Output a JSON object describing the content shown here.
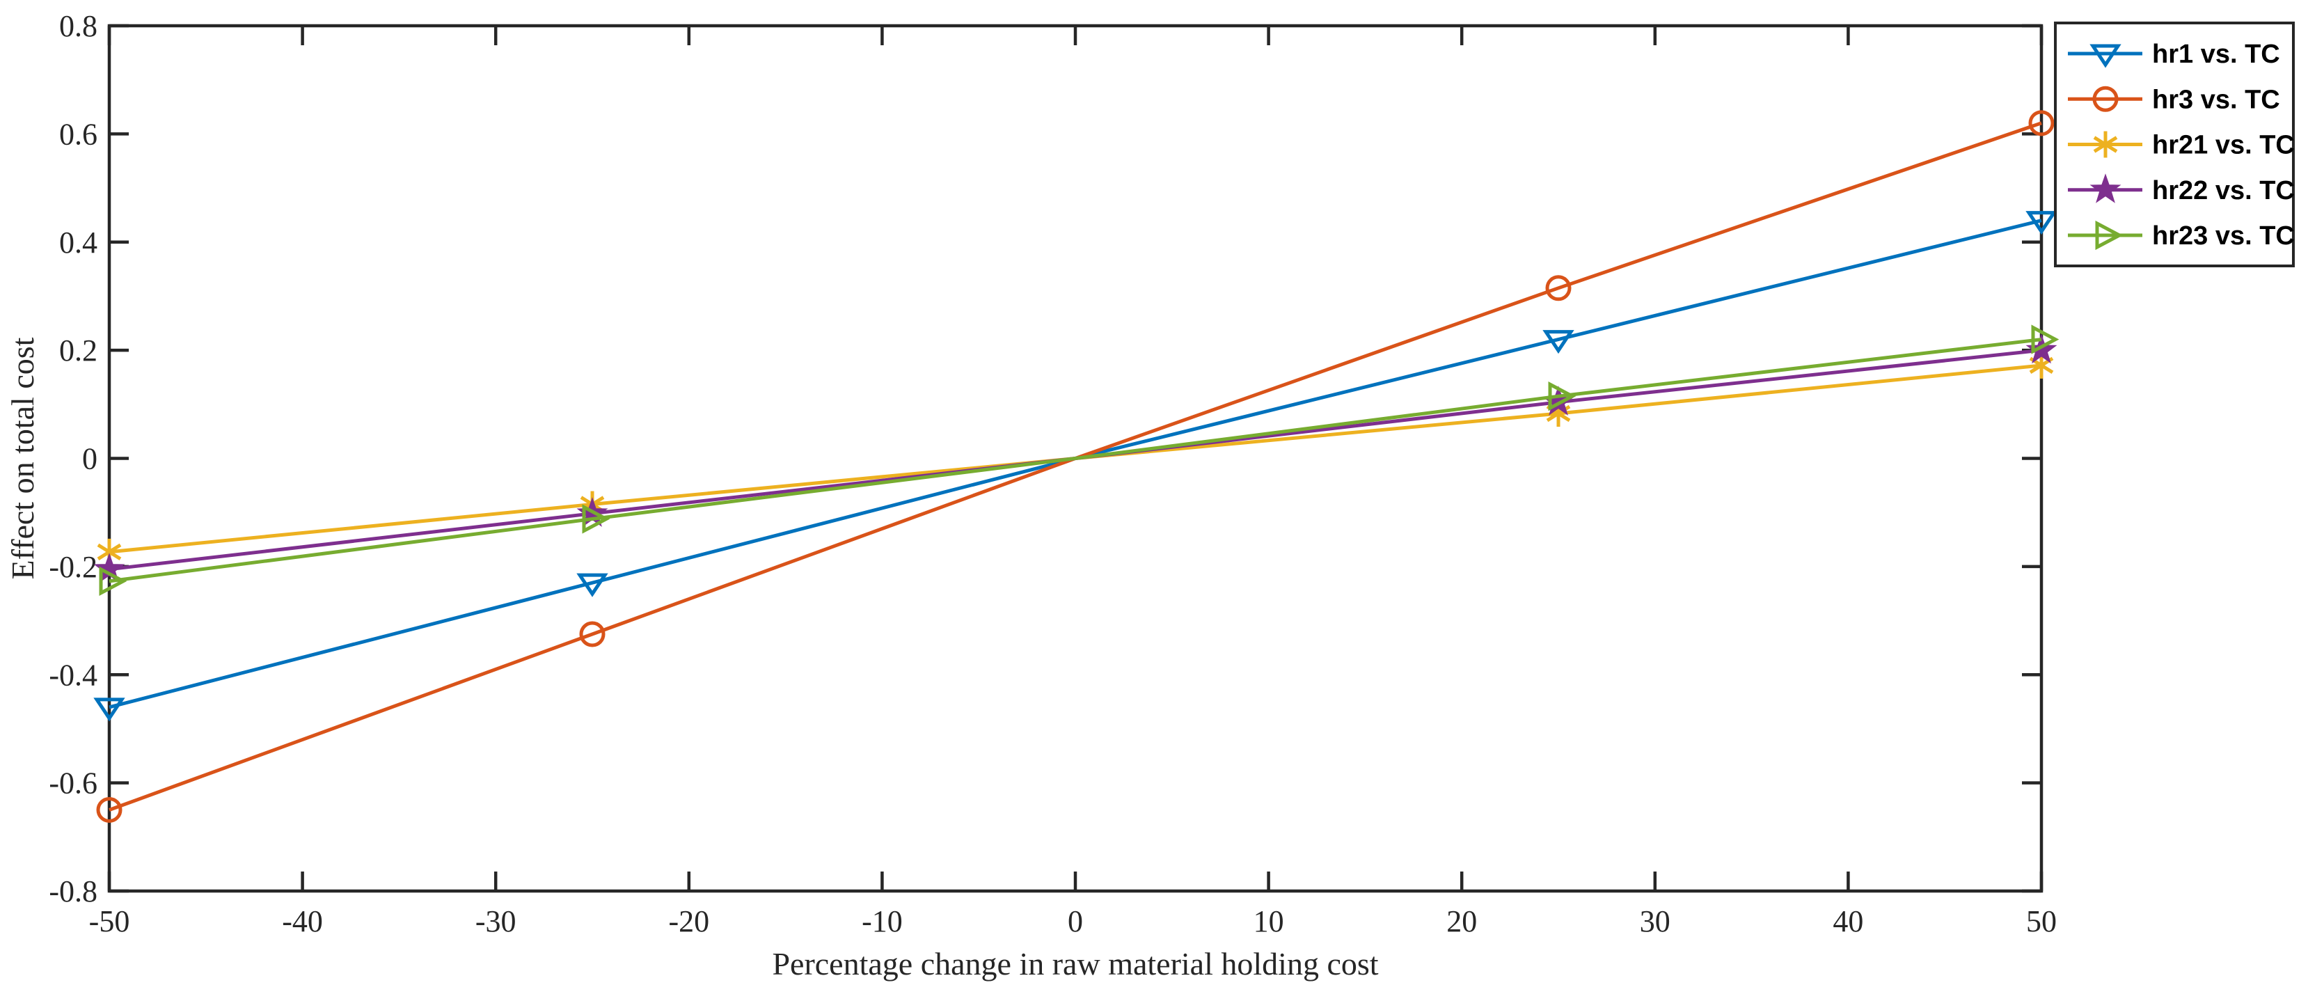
{
  "figure": {
    "background": "#ffffff",
    "axis_color": "#262626",
    "legend_border_color": "#262626"
  },
  "chart_data": {
    "type": "line",
    "title": "",
    "xlabel": "Percentage change in raw material holding cost",
    "ylabel": "Effect on total cost",
    "xlim": [
      -50,
      50
    ],
    "ylim": [
      -0.8,
      0.8
    ],
    "xticks": [
      -50,
      -40,
      -30,
      -20,
      -10,
      0,
      10,
      20,
      30,
      40,
      50
    ],
    "yticks": [
      0.8,
      0.6,
      0.4,
      0.2,
      0,
      -0.2,
      -0.4,
      -0.6,
      -0.8
    ],
    "grid": false,
    "box": true,
    "tick_direction": "in",
    "legend_position": "top-right-outside",
    "x": [
      -50,
      -25,
      0,
      25,
      50
    ],
    "series": [
      {
        "name": "hr1 vs. TC",
        "color": "#0072BD",
        "marker": "triangle-down",
        "values": [
          -0.46,
          -0.23,
          0,
          0.22,
          0.44
        ]
      },
      {
        "name": "hr3 vs. TC",
        "color": "#D95319",
        "marker": "circle",
        "values": [
          -0.65,
          -0.325,
          0,
          0.315,
          0.62
        ]
      },
      {
        "name": "hr21 vs. TC",
        "color": "#EDB120",
        "marker": "asterisk",
        "values": [
          -0.173,
          -0.085,
          0,
          0.083,
          0.172
        ]
      },
      {
        "name": "hr22 vs. TC",
        "color": "#7E2F8E",
        "marker": "star",
        "values": [
          -0.205,
          -0.102,
          0,
          0.104,
          0.2
        ]
      },
      {
        "name": "hr23 vs. TC",
        "color": "#77AC30",
        "marker": "triangle-right",
        "values": [
          -0.227,
          -0.112,
          0,
          0.115,
          0.22
        ]
      }
    ]
  }
}
